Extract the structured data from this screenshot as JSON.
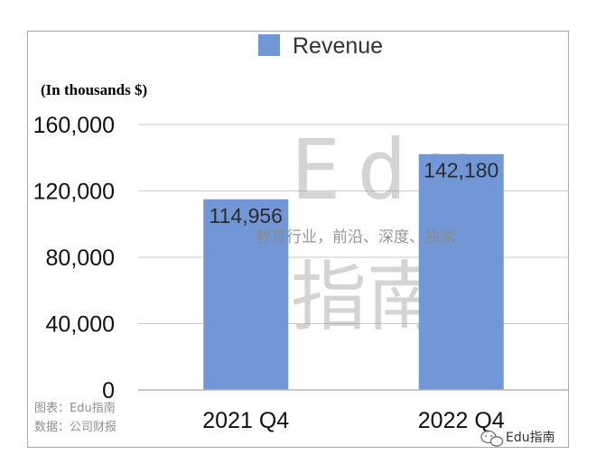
{
  "chart_data": {
    "type": "bar",
    "categories": [
      "2021 Q4",
      "2022 Q4"
    ],
    "series": [
      {
        "name": "Revenue",
        "values": [
          114956,
          142180
        ],
        "data_labels": [
          "114,956",
          "142,180"
        ]
      }
    ],
    "unit_label": "(In thousands $)",
    "y_ticks": [
      "0",
      "40,000",
      "80,000",
      "120,000",
      "160,000"
    ],
    "ylim": [
      0,
      160000
    ],
    "grid": true,
    "legend": "top-center",
    "bar_color": "#7297d6"
  },
  "watermark": {
    "brand_latin": "Edu",
    "brand_cn": "指南",
    "tagline": "教育行业，前沿、深度、独家"
  },
  "footnotes": {
    "chart_source": "图表：Edu指南",
    "data_source": "数据：公司财报"
  },
  "brand_badge": {
    "label": "Edu指南",
    "icon": "wechat-icon"
  }
}
